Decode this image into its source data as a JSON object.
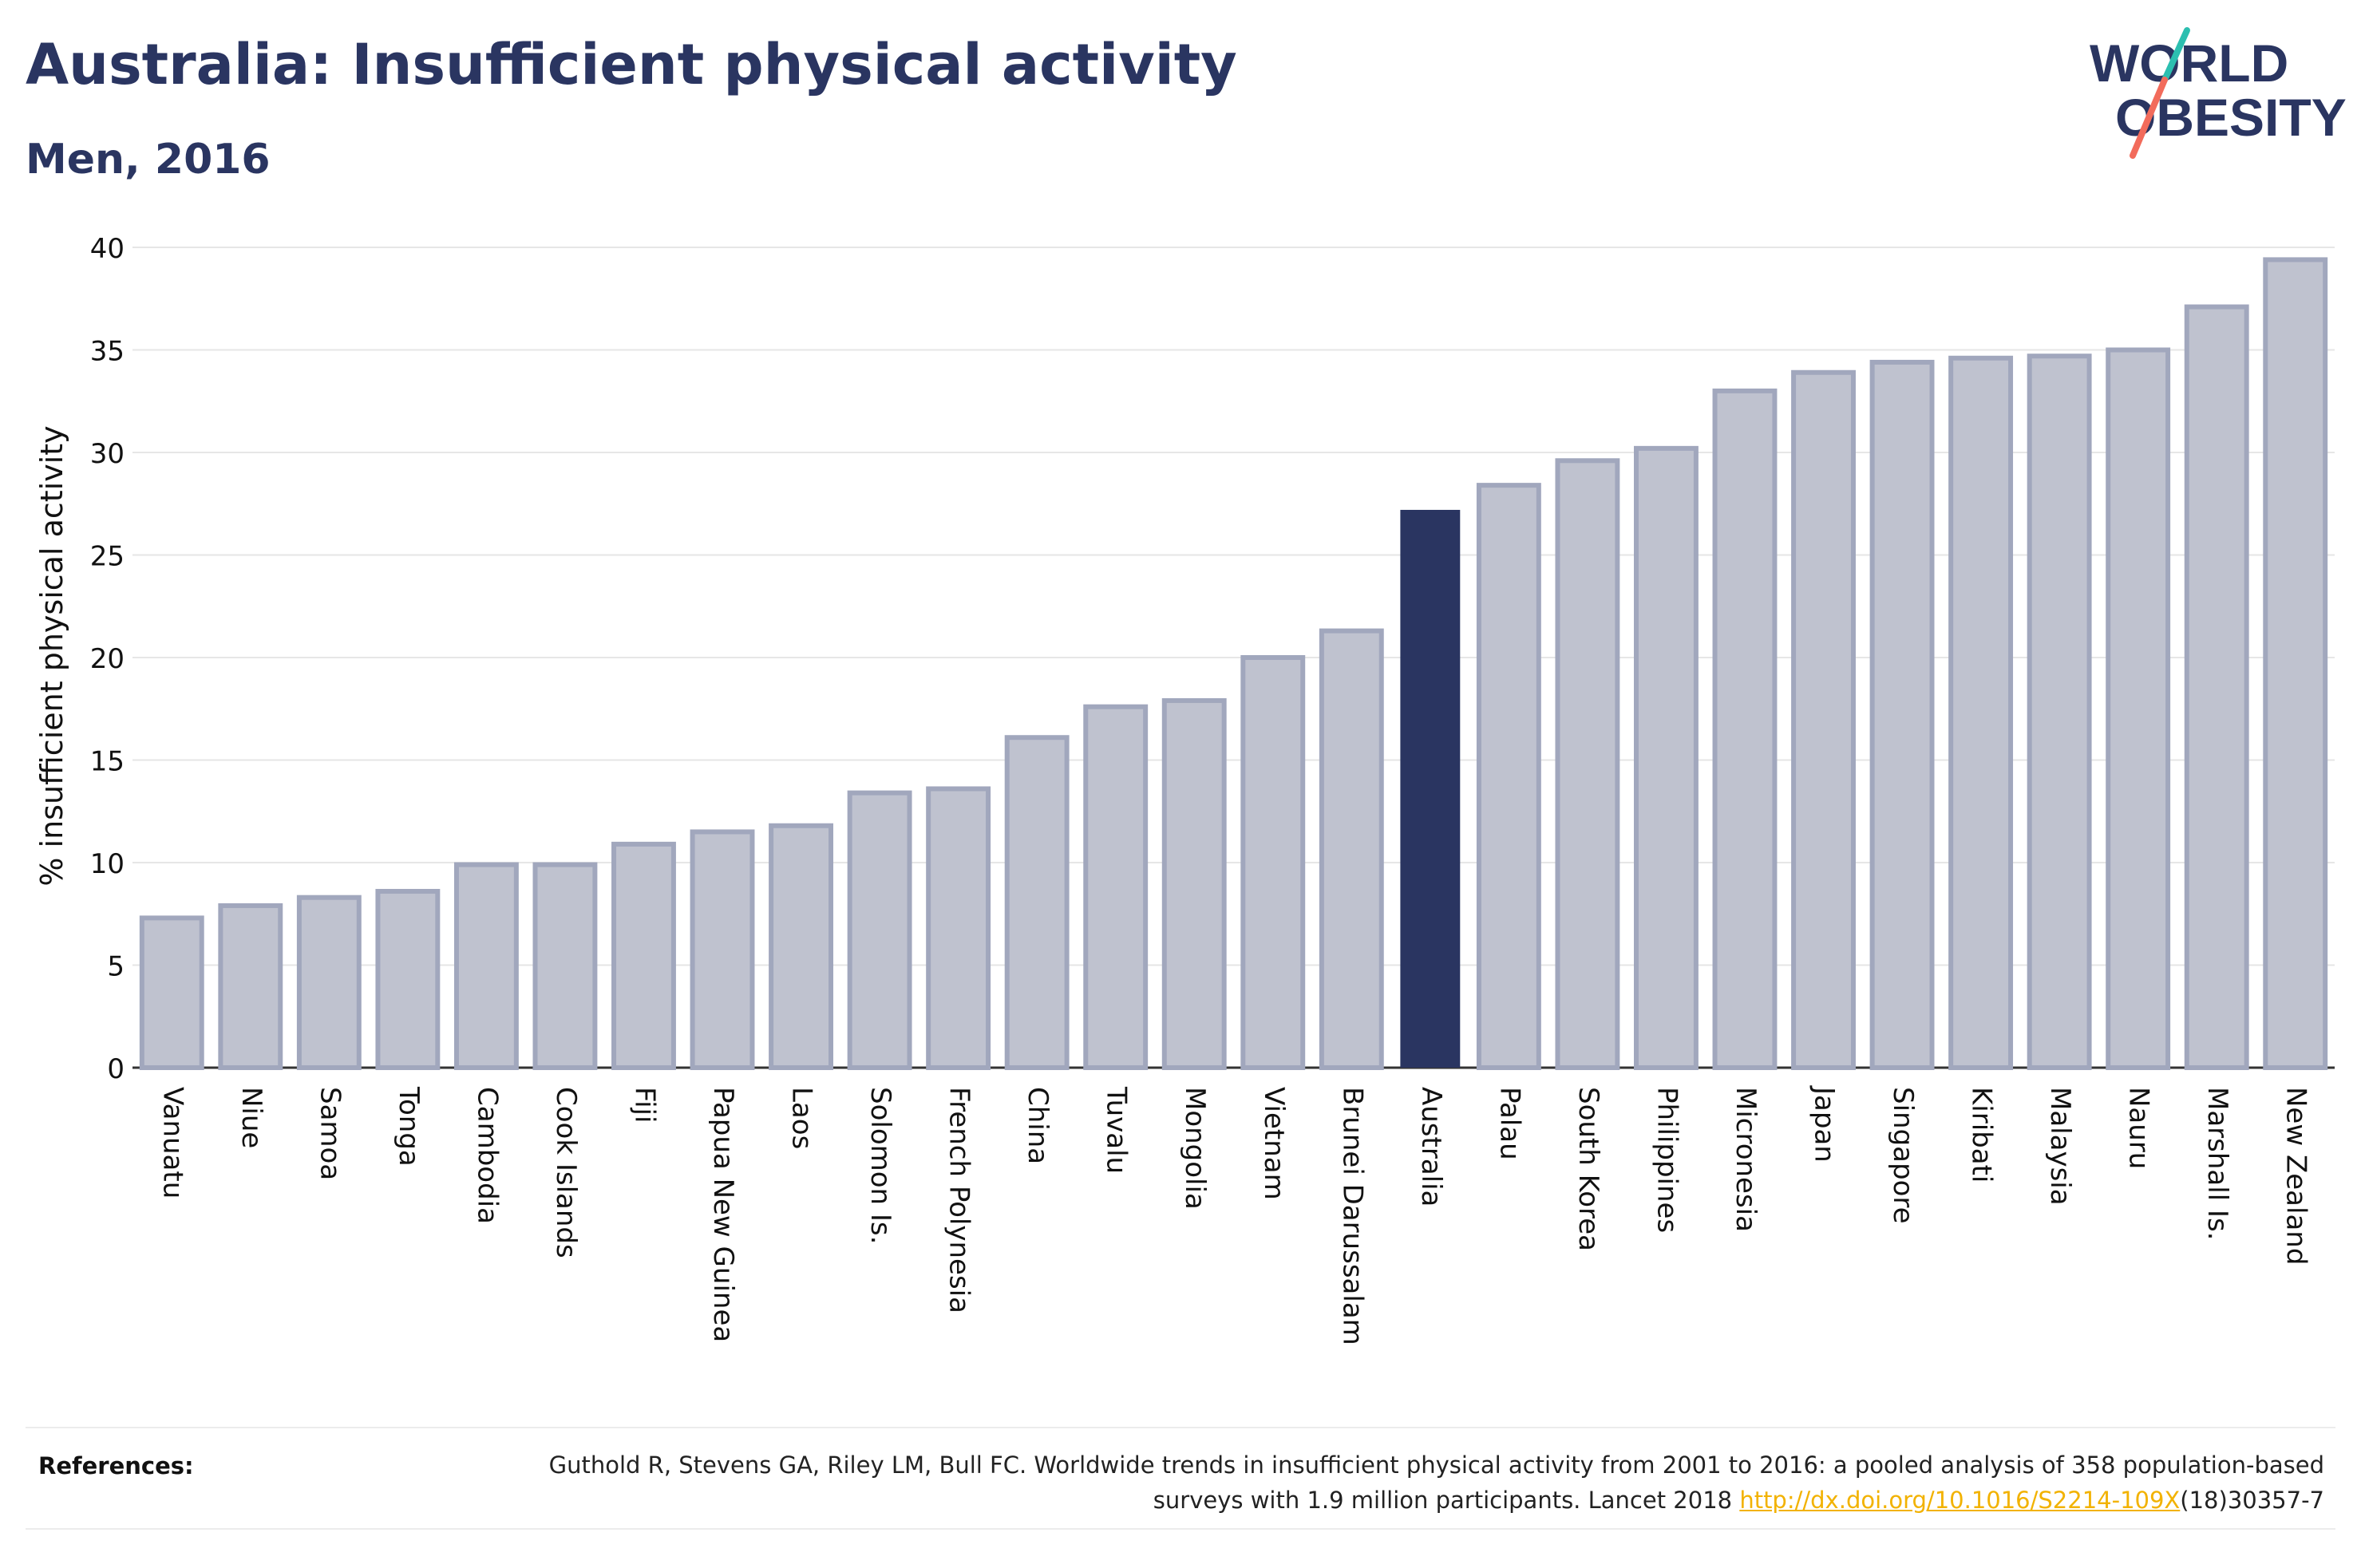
{
  "header": {
    "title": "Australia: Insufficient physical activity",
    "subtitle": "Men, 2016"
  },
  "logo": {
    "line1": "WORLD",
    "line2": "OBESITY",
    "slash_colors": [
      "#2cbfb0",
      "#f26b5b"
    ]
  },
  "references": {
    "label": "References:",
    "text_before": "Guthold R, Stevens GA, Riley LM, Bull FC. Worldwide trends in insufficient physical activity from 2001 to 2016: a pooled analysis of 358 population-based surveys with 1.9 million participants. Lancet 2018 ",
    "link": "http://dx.doi.org/10.1016/S2214-109X",
    "text_after": "(18)30357-7"
  },
  "colors": {
    "bar": "#bfc2cf",
    "bar_border": "#a1a7bd",
    "highlight": "#2a3561",
    "gridline": "#e6e6e6",
    "text": "#2a3561"
  },
  "chart_data": {
    "type": "bar",
    "title": "Australia: Insufficient physical activity",
    "subtitle": "Men, 2016",
    "xlabel": "",
    "ylabel": "% insufficient physical activity",
    "ylim": [
      0,
      40
    ],
    "yticks": [
      0,
      5,
      10,
      15,
      20,
      25,
      30,
      35,
      40
    ],
    "grid": true,
    "highlight": "Australia",
    "categories": [
      "Vanuatu",
      "Niue",
      "Samoa",
      "Tonga",
      "Cambodia",
      "Cook Islands",
      "Fiji",
      "Papua New Guinea",
      "Laos",
      "Solomon Is.",
      "French Polynesia",
      "China",
      "Tuvalu",
      "Mongolia",
      "Vietnam",
      "Brunei Darussalam",
      "Australia",
      "Palau",
      "South Korea",
      "Philippines",
      "Micronesia",
      "Japan",
      "Singapore",
      "Kiribati",
      "Malaysia",
      "Nauru",
      "Marshall Is.",
      "New Zealand"
    ],
    "values": [
      7.3,
      7.9,
      8.3,
      8.6,
      9.9,
      9.9,
      10.9,
      11.5,
      11.8,
      13.4,
      13.6,
      16.1,
      17.6,
      17.9,
      20.0,
      21.3,
      27.2,
      28.4,
      29.6,
      30.2,
      33.0,
      33.9,
      34.4,
      34.6,
      34.7,
      35.0,
      37.1,
      39.4
    ]
  }
}
